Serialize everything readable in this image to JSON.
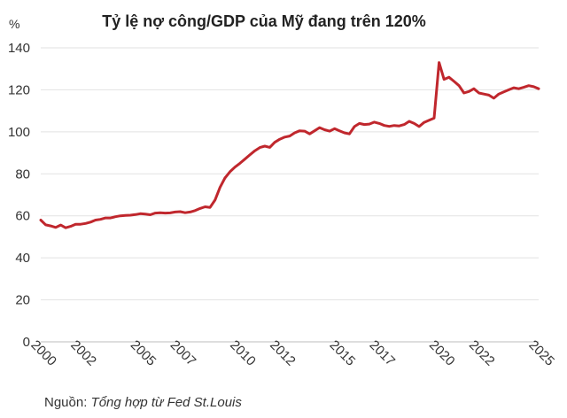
{
  "chart_data": {
    "type": "line",
    "title": "Tỷ lệ nợ công/GDP của Mỹ đang trên 120%",
    "ylabel": "%",
    "xlabel": "",
    "xlim": [
      2000,
      2025
    ],
    "ylim": [
      0,
      140
    ],
    "yticks": [
      0,
      20,
      40,
      60,
      80,
      100,
      120,
      140
    ],
    "xtick_labels": [
      "2000",
      "2002",
      "2005",
      "2007",
      "2010",
      "2012",
      "2015",
      "2017",
      "2020",
      "2022",
      "2025"
    ],
    "grid": "horizontal",
    "line_color": "#c0272d",
    "series": [
      {
        "x": [
          2000.0,
          2000.25,
          2000.5,
          2000.75,
          2001.0,
          2001.25,
          2001.5,
          2001.75,
          2002.0,
          2002.25,
          2002.5,
          2002.75,
          2003.0,
          2003.25,
          2003.5,
          2003.75,
          2004.0,
          2004.25,
          2004.5,
          2004.75,
          2005.0,
          2005.25,
          2005.5,
          2005.75,
          2006.0,
          2006.25,
          2006.5,
          2006.75,
          2007.0,
          2007.25,
          2007.5,
          2007.75,
          2008.0,
          2008.25,
          2008.5,
          2008.75,
          2009.0,
          2009.25,
          2009.5,
          2009.75,
          2010.0,
          2010.25,
          2010.5,
          2010.75,
          2011.0,
          2011.25,
          2011.5,
          2011.75,
          2012.0,
          2012.25,
          2012.5,
          2012.75,
          2013.0,
          2013.25,
          2013.5,
          2013.75,
          2014.0,
          2014.25,
          2014.5,
          2014.75,
          2015.0,
          2015.25,
          2015.5,
          2015.75,
          2016.0,
          2016.25,
          2016.5,
          2016.75,
          2017.0,
          2017.25,
          2017.5,
          2017.75,
          2018.0,
          2018.25,
          2018.5,
          2018.75,
          2019.0,
          2019.25,
          2019.5,
          2019.75,
          2020.0,
          2020.25,
          2020.5,
          2020.75,
          2021.0,
          2021.25,
          2021.5,
          2021.75,
          2022.0,
          2022.25,
          2022.5,
          2022.75,
          2023.0,
          2023.25,
          2023.5,
          2023.75,
          2024.0,
          2024.25,
          2024.5,
          2024.75,
          2025.0
        ],
        "values": [
          58,
          55.7,
          55.2,
          54.5,
          55.6,
          54.3,
          55,
          56,
          56,
          56.4,
          57,
          58,
          58.3,
          59,
          59,
          59.6,
          60,
          60.2,
          60.3,
          60.6,
          61,
          60.8,
          60.5,
          61.3,
          61.5,
          61.3,
          61.4,
          61.8,
          62,
          61.5,
          61.8,
          62.5,
          63.5,
          64.3,
          64,
          67.5,
          73.5,
          78,
          81,
          83.2,
          85,
          87,
          89,
          91,
          92.5,
          93.2,
          92.6,
          95,
          96.5,
          97.5,
          98,
          99.5,
          100.5,
          100.3,
          99,
          100.5,
          102,
          101,
          100.3,
          101.5,
          100.5,
          99.5,
          99,
          102.5,
          104,
          103.5,
          103.7,
          104.6,
          104,
          103,
          102.6,
          103,
          102.8,
          103.5,
          105,
          104,
          102.5,
          104.5,
          105.5,
          106.5,
          133,
          125,
          126,
          124,
          122,
          118.5,
          119.2,
          120.5,
          118.5,
          118,
          117.5,
          116,
          118,
          119,
          120,
          121,
          120.5,
          121.2,
          122,
          121.5,
          120.5
        ]
      }
    ]
  },
  "source": {
    "label": "Nguồn:",
    "text": "Tổng hợp từ Fed St.Louis"
  }
}
